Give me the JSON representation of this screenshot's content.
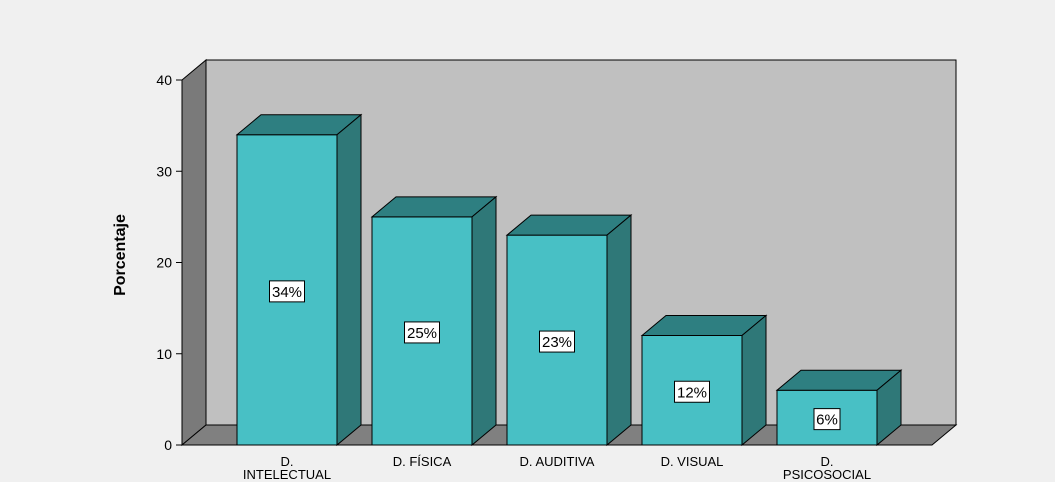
{
  "chart_data": {
    "type": "bar",
    "ylabel": "Porcentaje",
    "ylim": [
      0,
      40
    ],
    "yticks": [
      "0",
      "10",
      "20",
      "30",
      "40"
    ],
    "categories": [
      [
        "D.",
        "INTELECTUAL"
      ],
      [
        "D. FÍSICA"
      ],
      [
        "D. AUDITIVA"
      ],
      [
        "D. VISUAL"
      ],
      [
        "D.",
        "PSICOSOCIAL"
      ]
    ],
    "values": [
      34,
      25,
      23,
      12,
      6
    ],
    "data_labels": [
      "34%",
      "25%",
      "23%",
      "12%",
      "6%"
    ],
    "colors": {
      "bar_front": "#48c0c5",
      "bar_top": "#2e7f81",
      "bar_side": "#2f7878",
      "back_wall": "#c0c0c0",
      "side_wall": "#7a7a7a",
      "floor": "#808080"
    }
  }
}
